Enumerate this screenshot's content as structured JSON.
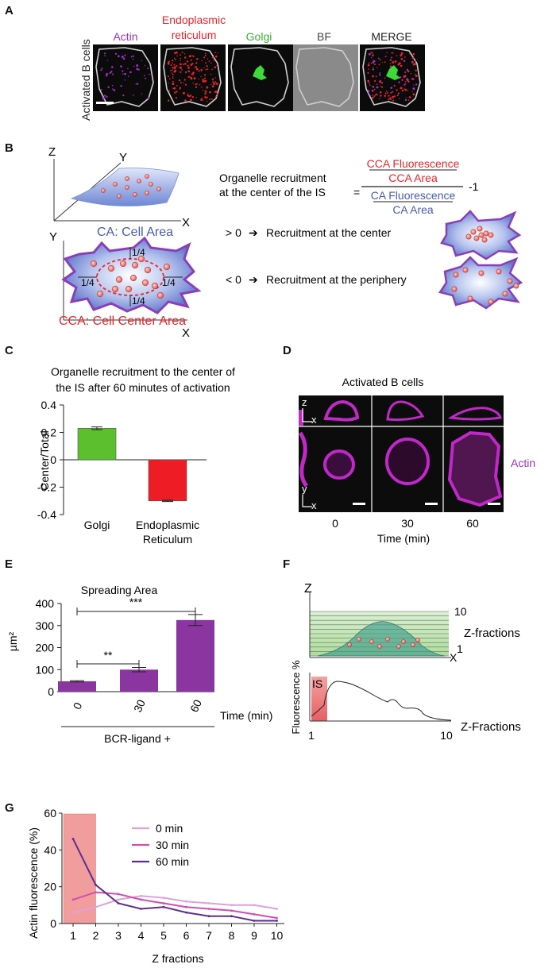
{
  "panels": {
    "A": "A",
    "B": "B",
    "C": "C",
    "D": "D",
    "E": "E",
    "F": "F",
    "G": "G"
  },
  "panelA": {
    "row_label": "Activated B cells",
    "channels": [
      {
        "label_line1": "",
        "label_line2": "Actin",
        "color": "#9b30c0"
      },
      {
        "label_line1": "Endoplasmic",
        "label_line2": "reticulum",
        "color": "#e8232a"
      },
      {
        "label_line1": "",
        "label_line2": "Golgi",
        "color": "#35b034"
      },
      {
        "label_line1": "",
        "label_line2": "BF",
        "color": "#444444"
      },
      {
        "label_line1": "",
        "label_line2": "MERGE",
        "color": "#222222"
      }
    ]
  },
  "panelB": {
    "axis_z": "Z",
    "axis_y": "Y",
    "axis_x": "X",
    "axis_y2": "Y",
    "axis_x2": "X",
    "ca_label": "CA: Cell Area",
    "cca_label": "CCA: Cell Center Area",
    "quarter": "1/4",
    "formula_line1": "Organelle recruitment",
    "formula_line2": "at the center of  the IS",
    "equals": "=",
    "num_top": "CCA Fluorescence",
    "num_bottom": "CCA Area",
    "den_top": "CA Fluorescence",
    "den_bottom": "CA Area",
    "minus_one": "-1",
    "gt_label": "> 0",
    "gt_text": "Recruitment at the center",
    "lt_label": "< 0",
    "lt_text": "Recruitment at the periphery"
  },
  "panelC": {
    "title_line1": "Organelle recruitment to the center of",
    "title_line2": "the IS after 60 minutes of activation",
    "ylabel": "Center/Total",
    "tick_labels": [
      "0.4",
      "0.2",
      "0",
      "-0.2",
      "-0.4"
    ],
    "cat1": "Golgi",
    "cat2_line1": "Endoplasmic",
    "cat2_line2": "Reticulum"
  },
  "panelD": {
    "title": "Activated B cells",
    "zx_z": "z",
    "zx_x": "x",
    "yx_y": "y",
    "yx_x": "x",
    "stain": "Actin",
    "times": [
      "0",
      "30",
      "60"
    ],
    "xlabel": "Time (min)"
  },
  "panelE": {
    "title": "Spreading Area",
    "ylabel": "µm²",
    "tick_labels": [
      "400",
      "300",
      "200",
      "100",
      "0"
    ],
    "sig1": "**",
    "sig2": "***",
    "xlabel": "Time (min)",
    "treatment": "BCR-ligand +"
  },
  "panelF": {
    "axis_z": "Z",
    "axis_x": "X",
    "top_tick": "10",
    "bottom_tick": "1",
    "zf_label": "Z-fractions",
    "is_label": "IS",
    "ylabel": "Fluorescence %",
    "xlabel": "Z-Fractions",
    "x_start": "1",
    "x_end": "10"
  },
  "panelG": {
    "ylabel": "Actin fluorescence (%)",
    "xlabel": "Z fractions",
    "tick_labels": [
      "60",
      "40",
      "20",
      "0"
    ]
  },
  "chart_data": [
    {
      "panel": "C",
      "type": "bar",
      "title": "Organelle recruitment to the center of the IS after 60 minutes of activation",
      "xlabel": "",
      "ylabel": "Center/Total",
      "ylim": [
        -0.4,
        0.4
      ],
      "categories": [
        "Golgi",
        "Endoplasmic Reticulum"
      ],
      "values": [
        0.23,
        -0.3
      ],
      "errors": [
        0.01,
        0.005
      ],
      "colors": [
        "#5bbf2e",
        "#ee1c25"
      ]
    },
    {
      "panel": "E",
      "type": "bar",
      "title": "Spreading Area",
      "xlabel": "Time (min)",
      "ylabel": "µm²",
      "ylim": [
        0,
        400
      ],
      "categories": [
        "0",
        "30",
        "60"
      ],
      "values": [
        47,
        100,
        325
      ],
      "errors": [
        3,
        10,
        25
      ],
      "color": "#8a35a0"
    },
    {
      "panel": "G",
      "type": "line",
      "xlabel": "Z fractions",
      "ylabel": "Actin fluorescence (%)",
      "ylim": [
        0,
        60
      ],
      "x": [
        1,
        2,
        3,
        4,
        5,
        6,
        7,
        8,
        9,
        10
      ],
      "series": [
        {
          "name": "0 min",
          "color": "#dca3d9",
          "values": [
            6,
            9,
            13,
            15,
            14,
            12,
            11,
            10,
            10,
            8
          ]
        },
        {
          "name": "30 min",
          "color": "#cf4fb0",
          "values": [
            13,
            17,
            16,
            13,
            11,
            9,
            8,
            7,
            5,
            3
          ]
        },
        {
          "name": "60 min",
          "color": "#5c2e91",
          "values": [
            46,
            21,
            11,
            8,
            9,
            6,
            4,
            4,
            1.5,
            1.5
          ]
        }
      ]
    }
  ]
}
